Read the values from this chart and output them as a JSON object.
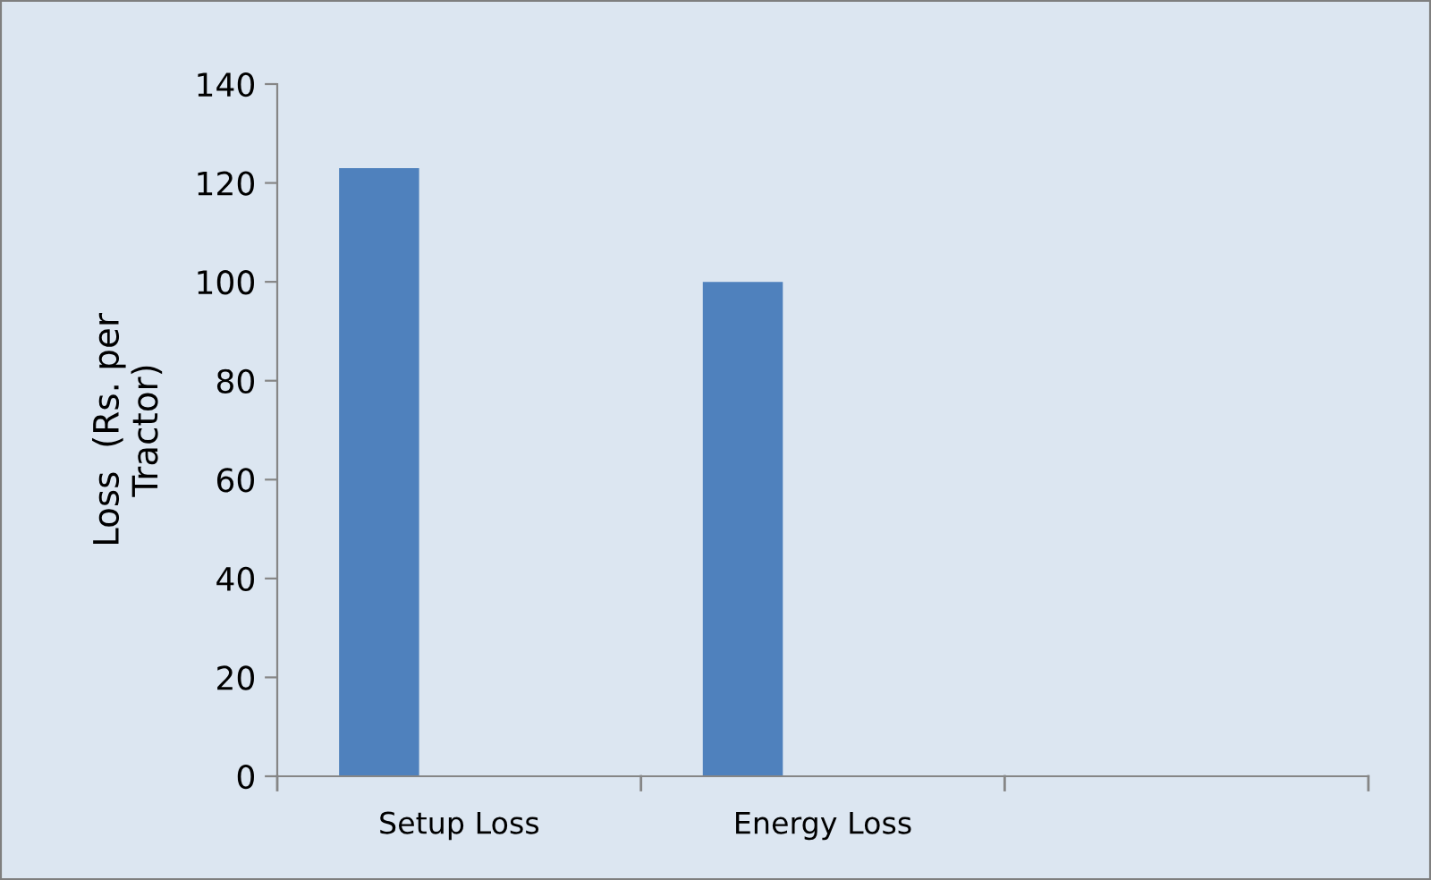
{
  "chart_data": {
    "type": "bar",
    "ylabel": "Loss  (Rs. per\nTractor)",
    "categories": [
      "Setup Loss",
      "Energy Loss",
      null
    ],
    "values": [
      123,
      100,
      null
    ],
    "color": "#4f81bd",
    "ylim": [
      0,
      140
    ],
    "yticks": [
      0,
      20,
      40,
      60,
      80,
      100,
      120,
      140
    ],
    "grid": false,
    "legend": false
  }
}
